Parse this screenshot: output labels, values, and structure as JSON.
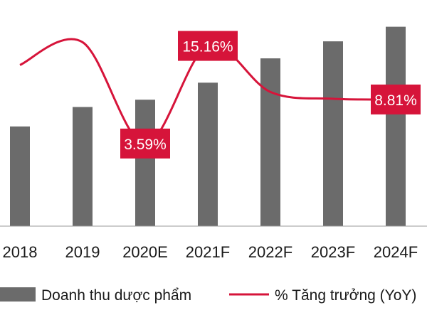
{
  "chart_data": {
    "type": "bar",
    "categories": [
      "2018",
      "2019",
      "2020E",
      "2021F",
      "2022F",
      "2023F",
      "2024F"
    ],
    "series": [
      {
        "name": "Doanh thu dược phẩm",
        "type": "bar",
        "values": [
          4.1,
          4.9,
          5.2,
          5.9,
          6.9,
          7.6,
          8.2
        ]
      },
      {
        "name": "% Tăng trưởng (YoY)",
        "type": "line",
        "unit": "%",
        "values": [
          12.9,
          15.6,
          3.59,
          15.16,
          9.7,
          8.9,
          8.81
        ]
      }
    ],
    "data_labels": [
      {
        "series": 1,
        "index": 2,
        "text": "3.59%"
      },
      {
        "series": 1,
        "index": 3,
        "text": "15.16%"
      },
      {
        "series": 1,
        "index": 6,
        "text": "8.81%"
      }
    ],
    "ylim_bar": [
      0,
      9.3
    ],
    "ylim_line": [
      -6.2,
      20.6
    ],
    "legend": "bottom",
    "grid": false,
    "colors": {
      "bar": "#6b6b6b",
      "line": "#d6143a",
      "label_bg": "#d6143a",
      "label_text": "#ffffff"
    }
  }
}
